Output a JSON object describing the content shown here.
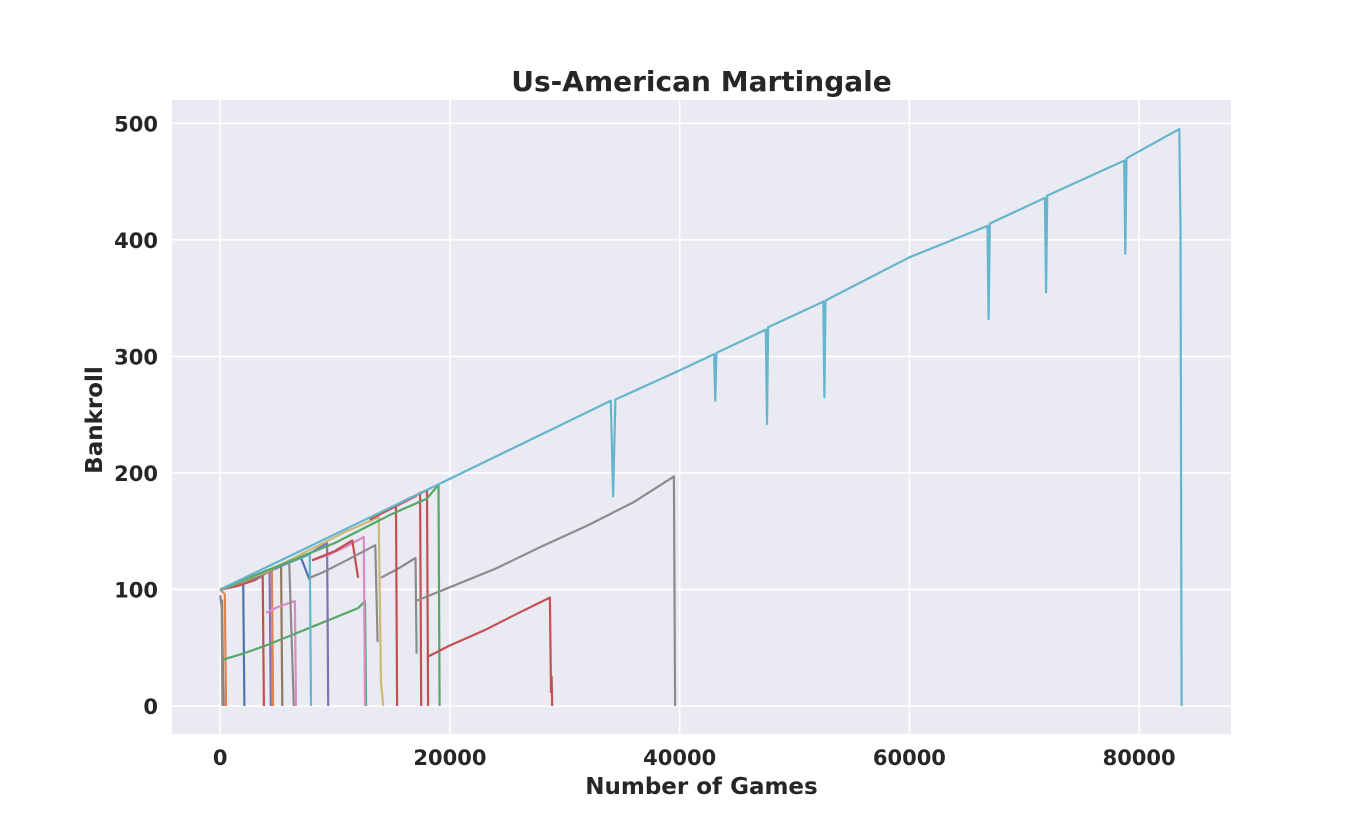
{
  "chart_data": {
    "type": "line",
    "title": "Us-American Martingale",
    "xlabel": "Number of Games",
    "ylabel": "Bankroll",
    "xlim": [
      -4200,
      88000
    ],
    "ylim": [
      -24,
      520
    ],
    "x_ticks": [
      0,
      20000,
      40000,
      60000,
      80000
    ],
    "y_ticks": [
      0,
      100,
      200,
      300,
      400,
      500
    ],
    "grid": true,
    "legend": "none",
    "colors": {
      "background": "#eaeaf2",
      "grid": "#ffffff",
      "text": "#262626"
    },
    "series": [
      {
        "color": "#dd8452",
        "x": [
          0,
          200,
          400,
          500
        ],
        "y": [
          100,
          98,
          96,
          0
        ]
      },
      {
        "color": "#937860",
        "x": [
          0,
          150,
          250,
          300
        ],
        "y": [
          92,
          90,
          20,
          0
        ]
      },
      {
        "color": "#8c8c8c",
        "x": [
          0,
          120,
          200
        ],
        "y": [
          95,
          85,
          0
        ]
      },
      {
        "color": "#4c72b0",
        "x": [
          0,
          1000,
          2000,
          2100
        ],
        "y": [
          100,
          102,
          106,
          0
        ]
      },
      {
        "color": "#c44e52",
        "x": [
          0,
          1500,
          3000,
          3700,
          3800
        ],
        "y": [
          100,
          103,
          108,
          112,
          0
        ]
      },
      {
        "color": "#8172b3",
        "x": [
          0,
          2000,
          3500,
          4300,
          4400
        ],
        "y": [
          100,
          106,
          111,
          116,
          0
        ]
      },
      {
        "color": "#dd8452",
        "x": [
          0,
          2500,
          4500,
          4600
        ],
        "y": [
          100,
          108,
          116,
          0
        ]
      },
      {
        "color": "#937860",
        "x": [
          0,
          3000,
          5300,
          5400
        ],
        "y": [
          100,
          110,
          120,
          0
        ]
      },
      {
        "color": "#da8bc3",
        "x": [
          4000,
          5000,
          6500,
          6600
        ],
        "y": [
          80,
          85,
          90,
          0
        ]
      },
      {
        "color": "#55a868",
        "x": [
          300,
          2000,
          4000,
          6000,
          8000,
          10000,
          12000,
          12600,
          12700
        ],
        "y": [
          40,
          45,
          52,
          60,
          68,
          76,
          84,
          90,
          0
        ]
      },
      {
        "color": "#8c8c8c",
        "x": [
          0,
          3000,
          6000,
          6400
        ],
        "y": [
          100,
          112,
          124,
          0
        ]
      },
      {
        "color": "#4c72b0",
        "x": [
          0,
          4000,
          7000,
          7800
        ],
        "y": [
          100,
          115,
          128,
          108
        ]
      },
      {
        "color": "#64b5cd",
        "x": [
          0,
          4000,
          7800,
          7900
        ],
        "y": [
          100,
          115,
          130,
          0
        ]
      },
      {
        "color": "#8172b3",
        "x": [
          0,
          4000,
          8000,
          9300,
          9400
        ],
        "y": [
          100,
          115,
          132,
          140,
          0
        ]
      },
      {
        "color": "#da8bc3",
        "x": [
          8000,
          9500,
          11000,
          12500,
          12600
        ],
        "y": [
          125,
          130,
          137,
          145,
          0
        ]
      },
      {
        "color": "#c44e52",
        "x": [
          8000,
          10000,
          11500,
          12000
        ],
        "y": [
          125,
          133,
          142,
          110
        ]
      },
      {
        "color": "#8c8c8c",
        "x": [
          7800,
          9000,
          11000,
          13500,
          13700
        ],
        "y": [
          110,
          115,
          125,
          138,
          55
        ]
      },
      {
        "color": "#ccb974",
        "x": [
          0,
          4000,
          8000,
          11000,
          13800,
          14000,
          14200
        ],
        "y": [
          100,
          115,
          135,
          150,
          162,
          20,
          0
        ]
      },
      {
        "color": "#8c8c8c",
        "x": [
          14000,
          15500,
          17000,
          17100
        ],
        "y": [
          110,
          118,
          127,
          45
        ]
      },
      {
        "color": "#c44e52",
        "x": [
          13000,
          14000,
          15000,
          15300,
          15400
        ],
        "y": [
          160,
          165,
          170,
          172,
          0
        ]
      },
      {
        "color": "#c44e52",
        "x": [
          13000,
          15000,
          17000,
          17400,
          17500
        ],
        "y": [
          160,
          170,
          180,
          183,
          0
        ]
      },
      {
        "color": "#c44e52",
        "x": [
          15000,
          16000,
          17500,
          18000,
          18100
        ],
        "y": [
          170,
          176,
          183,
          185,
          0
        ]
      },
      {
        "color": "#55a868",
        "x": [
          0,
          5000,
          10000,
          15000,
          18000,
          19000,
          19100
        ],
        "y": [
          100,
          120,
          140,
          165,
          178,
          190,
          0
        ]
      },
      {
        "color": "#8c8c8c",
        "x": [
          17000,
          20000,
          24000,
          28000,
          32000,
          36000,
          39500,
          39600
        ],
        "y": [
          90,
          102,
          118,
          137,
          155,
          175,
          197,
          0
        ]
      },
      {
        "color": "#c44e52",
        "x": [
          18000,
          20000,
          23000,
          26000,
          28700,
          28800,
          28850,
          28900
        ],
        "y": [
          42,
          52,
          65,
          80,
          93,
          12,
          25,
          0
        ]
      },
      {
        "color": "#64b5cd",
        "x": [
          0,
          20000,
          34000,
          34200,
          34400,
          40000,
          43000,
          43100,
          43200,
          47500,
          47600,
          47700,
          52500,
          52600,
          52700,
          60000,
          66800,
          66900,
          67000,
          71800,
          71900,
          72000,
          78700,
          78800,
          78900,
          83500,
          83600,
          83700
        ],
        "y": [
          100,
          195,
          262,
          180,
          263,
          288,
          302,
          262,
          303,
          323,
          242,
          325,
          347,
          265,
          348,
          385,
          412,
          332,
          414,
          436,
          355,
          438,
          468,
          388,
          470,
          495,
          412,
          0
        ]
      }
    ]
  }
}
